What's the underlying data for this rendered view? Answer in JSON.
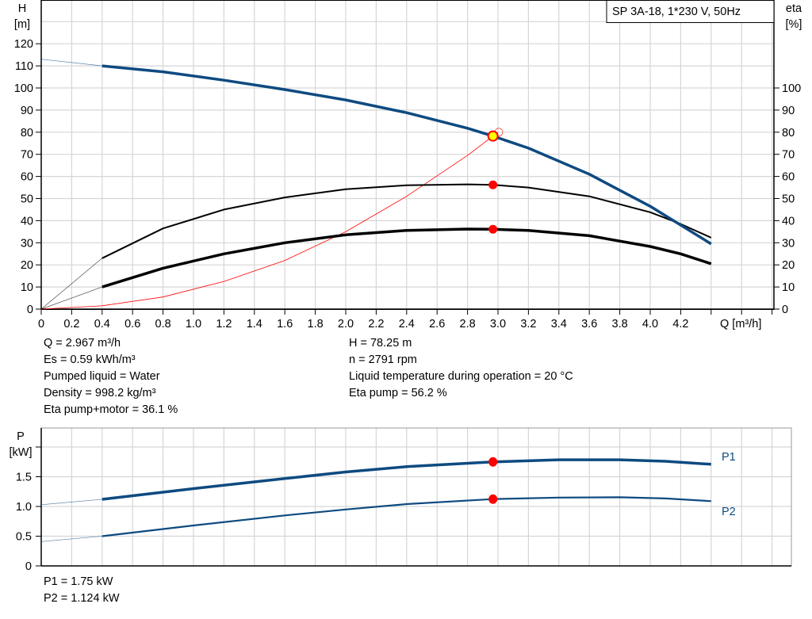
{
  "chart_data": [
    {
      "type": "line",
      "title": "SP 3A-18, 1*230 V, 50Hz",
      "ylabel": "H",
      "yunit": "[m]",
      "y2label": "eta",
      "y2unit": "[%]",
      "xlabel": "Q [m³/h]",
      "xlim": [
        0,
        4.8
      ],
      "ylim": [
        0,
        140
      ],
      "xticks": [
        "0",
        "0.2",
        "0.4",
        "0.6",
        "0.8",
        "1.0",
        "1.2",
        "1.4",
        "1.6",
        "1.8",
        "2.0",
        "2.2",
        "2.4",
        "2.6",
        "2.8",
        "3.0",
        "3.2",
        "3.4",
        "3.6",
        "3.8",
        "4.0",
        "4.2"
      ],
      "yticks": [
        "0",
        "10",
        "20",
        "30",
        "40",
        "50",
        "60",
        "70",
        "80",
        "90",
        "100",
        "110",
        "120"
      ],
      "y2ticks": [
        "0",
        "10",
        "20",
        "30",
        "40",
        "50",
        "60",
        "70",
        "80",
        "90",
        "100"
      ],
      "grid": true,
      "series": [
        {
          "key": "H",
          "color": "#0e4a80",
          "x": [
            0,
            0.4,
            0.8,
            1.2,
            1.6,
            2.0,
            2.4,
            2.8,
            2.967,
            3.2,
            3.6,
            4.0,
            4.4
          ],
          "values": [
            113,
            110,
            107.3,
            103.5,
            99.3,
            94.6,
            88.8,
            81.8,
            78.25,
            72.8,
            61,
            46.5,
            29.5
          ]
        },
        {
          "key": "eta_pump",
          "color": "#000000",
          "x": [
            0,
            0.4,
            0.8,
            1.2,
            1.6,
            2.0,
            2.4,
            2.8,
            2.967,
            3.2,
            3.6,
            4.0,
            4.2,
            4.4
          ],
          "values": [
            0,
            23,
            36.5,
            45,
            50.5,
            54.2,
            56,
            56.4,
            56.2,
            55,
            51,
            43.8,
            38.5,
            32.3
          ]
        },
        {
          "key": "eta_pump_motor",
          "color": "#000000",
          "x": [
            0,
            0.4,
            0.8,
            1.2,
            1.6,
            2.0,
            2.4,
            2.8,
            2.967,
            3.2,
            3.6,
            4.0,
            4.2,
            4.4
          ],
          "values": [
            0,
            10,
            18.5,
            25,
            30,
            33.6,
            35.6,
            36.2,
            36.1,
            35.6,
            33.2,
            28.3,
            25,
            20.5
          ]
        },
        {
          "key": "system_curve",
          "color": "#ff0000",
          "x": [
            0,
            0.4,
            0.8,
            1.2,
            1.6,
            2.0,
            2.4,
            2.8,
            2.967,
            3.0
          ],
          "values": [
            0,
            1.5,
            5.5,
            12.5,
            22,
            35,
            51,
            69.5,
            78.25,
            80
          ]
        }
      ],
      "duty_point": {
        "Q": 2.967,
        "H": 78.25,
        "eta_pump": 56.2,
        "eta_pump_motor": 36.1
      }
    },
    {
      "type": "line",
      "ylabel": "P",
      "yunit": "[kW]",
      "xlim": [
        0,
        4.9
      ],
      "ylim": [
        0,
        2.32
      ],
      "yticks": [
        "0",
        "0.5",
        "1.0",
        "1.5"
      ],
      "grid": true,
      "series": [
        {
          "name": "P1",
          "color": "#0e4a80",
          "x": [
            0,
            0.4,
            1.0,
            1.6,
            2.0,
            2.4,
            2.967,
            3.4,
            3.8,
            4.1,
            4.4
          ],
          "values": [
            1.03,
            1.12,
            1.3,
            1.47,
            1.58,
            1.67,
            1.75,
            1.785,
            1.785,
            1.76,
            1.71
          ]
        },
        {
          "name": "P2",
          "color": "#0e4a80",
          "x": [
            0,
            0.4,
            1.0,
            1.6,
            2.0,
            2.4,
            2.967,
            3.4,
            3.8,
            4.1,
            4.4
          ],
          "values": [
            0.41,
            0.5,
            0.68,
            0.85,
            0.95,
            1.04,
            1.124,
            1.15,
            1.155,
            1.135,
            1.09
          ]
        }
      ],
      "duty_point": {
        "Q": 2.967,
        "P1": 1.75,
        "P2": 1.124
      }
    }
  ],
  "info": {
    "left": [
      "Q = 2.967 m³/h",
      "Es = 0.59 kWh/m³",
      "Pumped liquid = Water",
      "Density = 998.2 kg/m³",
      "Eta pump+motor = 36.1 %"
    ],
    "right": [
      "H = 78.25 m",
      "n = 2791 rpm",
      "Liquid temperature during operation = 20 °C",
      "Eta pump = 56.2 %"
    ],
    "power": [
      "P1 = 1.75 kW",
      "P2 = 1.124 kW"
    ]
  }
}
